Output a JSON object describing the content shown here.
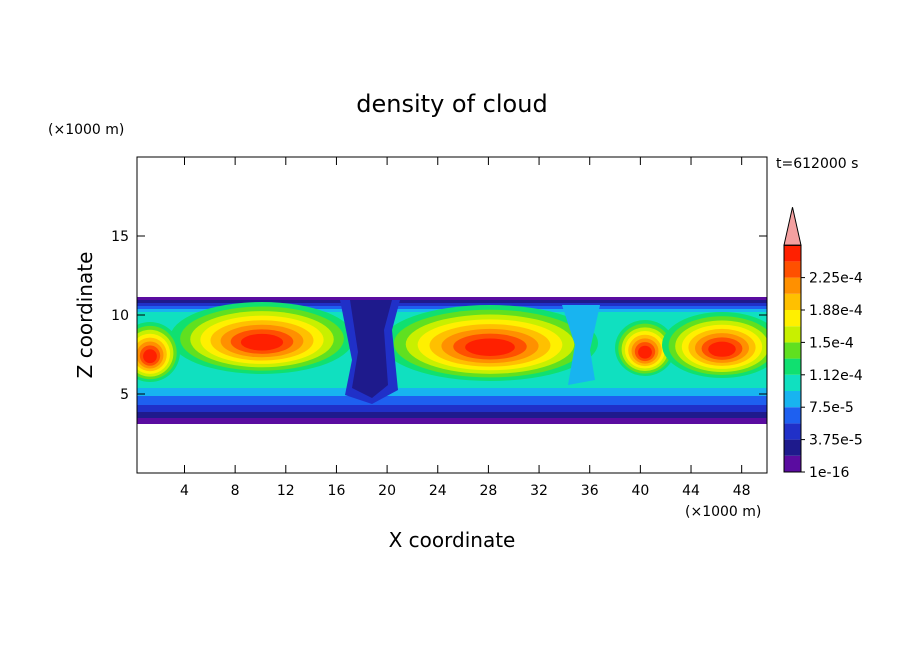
{
  "chart_data": {
    "type": "contour",
    "title": "density of cloud",
    "x_label": "X coordinate",
    "y_label": "Z coordinate",
    "x_unit": "(×1000 m)",
    "y_unit": "(×1000 m)",
    "annotation": "t=612000 s",
    "xlim": [
      0.25,
      50
    ],
    "ylim": [
      0,
      20
    ],
    "xticks": [
      4,
      8,
      12,
      16,
      20,
      24,
      28,
      32,
      36,
      40,
      44,
      48
    ],
    "yticks": [
      5,
      10,
      15
    ],
    "colorbar": {
      "colors": [
        "#5a0ca0",
        "#1e1a8c",
        "#2030c8",
        "#1e60f0",
        "#18b4f0",
        "#10e0c0",
        "#10e070",
        "#60e020",
        "#c8f000",
        "#fff000",
        "#ffc000",
        "#ff9000",
        "#ff5000",
        "#ff2000"
      ],
      "extend_color": "#f4a0a0",
      "ticks": [
        {
          "value": 1e-16,
          "label": "1e-16"
        },
        {
          "value": 3.75e-05,
          "label": "3.75e-5"
        },
        {
          "value": 7.5e-05,
          "label": "7.5e-5"
        },
        {
          "value": 0.000112,
          "label": "1.12e-4"
        },
        {
          "value": 0.00015,
          "label": "1.5e-4"
        },
        {
          "value": 0.000188,
          "label": "1.88e-4"
        },
        {
          "value": 0.000225,
          "label": "2.25e-4"
        }
      ]
    }
  }
}
